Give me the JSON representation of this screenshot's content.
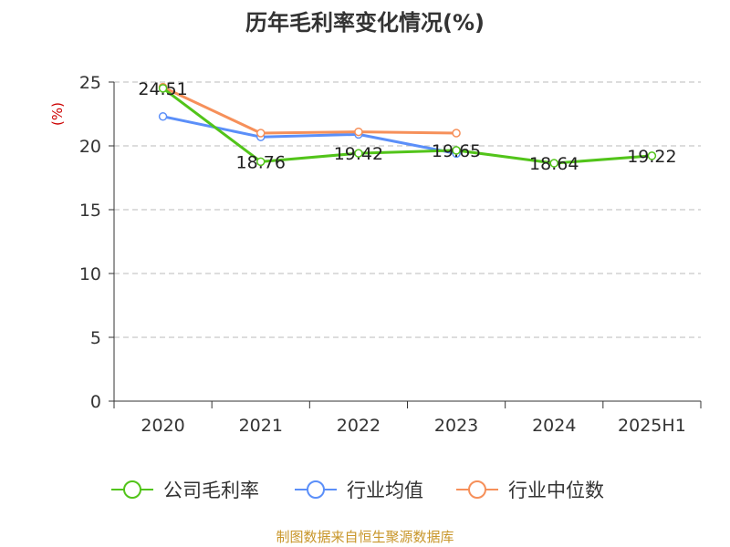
{
  "chart_data": {
    "type": "line",
    "title": "历年毛利率变化情况(%)",
    "ylabel": "(%)",
    "xlabel": "",
    "categories": [
      "2020",
      "2021",
      "2022",
      "2023",
      "2024",
      "2025H1"
    ],
    "ylim": [
      0,
      25
    ],
    "yticks": [
      "0",
      "5",
      "10",
      "15",
      "20",
      "25"
    ],
    "grid": true,
    "legend_position": "bottom",
    "series": [
      {
        "name": "公司毛利率",
        "color": "#52c41a",
        "values": [
          24.51,
          18.76,
          19.42,
          19.65,
          18.64,
          19.22
        ],
        "labels": [
          "24.51",
          "18.76",
          "19.42",
          "19.65",
          "18.64",
          "19.22"
        ]
      },
      {
        "name": "行业均值",
        "color": "#5b8ff9",
        "values": [
          22.3,
          20.7,
          20.9,
          19.4,
          null,
          null
        ],
        "labels": []
      },
      {
        "name": "行业中位数",
        "color": "#f6905a",
        "values": [
          24.6,
          21.0,
          21.1,
          21.0,
          null,
          null
        ],
        "labels": []
      }
    ]
  },
  "source": "制图数据来自恒生聚源数据库",
  "colors": {
    "title": "#333333",
    "ylabel": "#cc0000",
    "source": "#c8962a",
    "grid": "#bbbbbb",
    "axis": "#333333"
  }
}
